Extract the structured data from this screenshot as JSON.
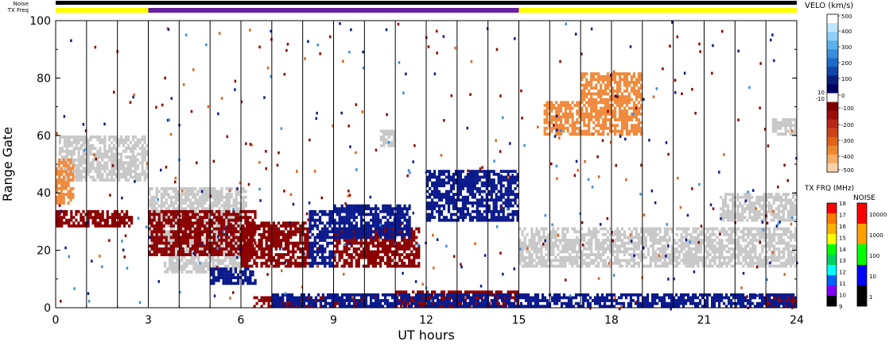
{
  "top_bars": {
    "noise_label": "Noise",
    "txfreq_label": "TX Freq",
    "txfreq_segments": [
      {
        "from": 0,
        "to": 3,
        "color": "#ffff00"
      },
      {
        "from": 3,
        "to": 15,
        "color": "#6a1fa0"
      },
      {
        "from": 15,
        "to": 24,
        "color": "#ffff00"
      }
    ]
  },
  "chart_data": {
    "type": "heatmap",
    "xlabel": "UT hours",
    "ylabel": "Range Gate",
    "xlim": [
      0,
      24
    ],
    "ylim": [
      0,
      100
    ],
    "x_ticks": [
      "0",
      "3",
      "6",
      "9",
      "12",
      "15",
      "18",
      "21",
      "24"
    ],
    "x_tick_values": [
      0,
      3,
      6,
      9,
      12,
      15,
      18,
      21,
      24
    ],
    "y_ticks": [
      "0",
      "20",
      "40",
      "60",
      "80",
      "100"
    ],
    "y_tick_values": [
      0,
      20,
      40,
      60,
      80,
      100
    ],
    "scan_boundaries_ut": [
      1.0,
      2.0,
      3.0,
      4.0,
      5.0,
      6.0,
      7.0,
      8.0,
      9.0,
      10.0,
      11.0,
      12.0,
      13.0,
      14.0,
      15.0,
      16.0,
      17.0,
      18.0,
      19.0,
      20.0,
      21.0,
      22.0,
      23.0
    ],
    "regions": [
      {
        "label": "ground scatter",
        "color": "#c8c8c8",
        "x": [
          0.1,
          3.0
        ],
        "y": [
          44,
          60
        ]
      },
      {
        "label": "ground scatter",
        "color": "#c8c8c8",
        "x": [
          3.0,
          6.2
        ],
        "y": [
          22,
          42
        ]
      },
      {
        "label": "ground scatter",
        "color": "#c8c8c8",
        "x": [
          3.5,
          6.0
        ],
        "y": [
          12,
          24
        ]
      },
      {
        "label": "ground scatter",
        "color": "#c8c8c8",
        "x": [
          15.0,
          24.0
        ],
        "y": [
          14,
          28
        ]
      },
      {
        "label": "ground scatter",
        "color": "#c8c8c8",
        "x": [
          21.5,
          24.0
        ],
        "y": [
          30,
          40
        ]
      },
      {
        "label": "ground scatter",
        "color": "#c8c8c8",
        "x": [
          23.2,
          24.0
        ],
        "y": [
          60,
          66
        ]
      },
      {
        "label": "ground scatter",
        "color": "#c8c8c8",
        "x": [
          10.5,
          11.0
        ],
        "y": [
          56,
          62
        ]
      },
      {
        "label": "negative velocity",
        "color": "#8b0000",
        "x": [
          0.0,
          2.5
        ],
        "y": [
          28,
          34
        ]
      },
      {
        "label": "negative velocity",
        "color": "#8b0000",
        "x": [
          3.0,
          6.5
        ],
        "y": [
          18,
          34
        ]
      },
      {
        "label": "negative velocity",
        "color": "#8b0000",
        "x": [
          6.0,
          8.2
        ],
        "y": [
          14,
          30
        ]
      },
      {
        "label": "negative velocity",
        "color": "#8b0000",
        "x": [
          9.0,
          11.8
        ],
        "y": [
          14,
          28
        ]
      },
      {
        "label": "negative velocity",
        "color": "#8b0000",
        "x": [
          6.4,
          10.0
        ],
        "y": [
          0,
          4
        ]
      },
      {
        "label": "negative velocity",
        "color": "#8b0000",
        "x": [
          11.0,
          15.0
        ],
        "y": [
          0,
          6
        ]
      },
      {
        "label": "negative velocity",
        "color": "#8b0000",
        "x": [
          23.0,
          24.0
        ],
        "y": [
          0,
          4
        ]
      },
      {
        "label": "positive velocity",
        "color": "#0a1a8c",
        "x": [
          8.2,
          9.0
        ],
        "y": [
          14,
          34
        ]
      },
      {
        "label": "positive velocity",
        "color": "#0a1a8c",
        "x": [
          9.0,
          11.5
        ],
        "y": [
          24,
          36
        ]
      },
      {
        "label": "positive velocity",
        "color": "#0a1a8c",
        "x": [
          5.0,
          6.5
        ],
        "y": [
          8,
          14
        ]
      },
      {
        "label": "positive velocity",
        "color": "#0a1a8c",
        "x": [
          7.0,
          24.0
        ],
        "y": [
          0,
          5
        ]
      },
      {
        "label": "positive velocity",
        "color": "#0a1a8c",
        "x": [
          12.0,
          15.0
        ],
        "y": [
          30,
          48
        ]
      },
      {
        "label": "strong negative velocity",
        "color": "#f08a3c",
        "x": [
          17.0,
          19.0
        ],
        "y": [
          60,
          82
        ]
      },
      {
        "label": "strong negative velocity",
        "color": "#f08a3c",
        "x": [
          15.8,
          17.0
        ],
        "y": [
          60,
          72
        ]
      },
      {
        "label": "strong negative velocity",
        "color": "#f08a3c",
        "x": [
          0.0,
          0.6
        ],
        "y": [
          36,
          52
        ]
      }
    ],
    "velocity_colorbar": {
      "title": "VELO (km/s)",
      "ticks": [
        "500",
        "400",
        "300",
        "200",
        "100",
        "10",
        "0",
        "-10",
        "-100",
        "-200",
        "-300",
        "-400",
        "-500"
      ],
      "colors": [
        "#ffffff",
        "#bfe6ff",
        "#8fd0f8",
        "#5cb2ec",
        "#3a8fdc",
        "#1f6cc8",
        "#1245a8",
        "#0a1f7a",
        "#000060",
        "#ffffff",
        "#7a0000",
        "#9a0f0a",
        "#b8261a",
        "#cc4416",
        "#e0621a",
        "#ee8830",
        "#f5ac66",
        "#fbd2a8"
      ]
    },
    "txfreq_colorbar": {
      "title": "TX FRQ (MHz)",
      "ticks": [
        "18",
        "17",
        "16",
        "15",
        "14",
        "13",
        "12",
        "11",
        "10",
        "9"
      ],
      "colors": [
        "#ff0000",
        "#ff7a00",
        "#ffb000",
        "#ffff00",
        "#00ff00",
        "#00d060",
        "#00ffff",
        "#0060ff",
        "#8000ff",
        "#000000"
      ]
    },
    "noise_colorbar": {
      "title": "NOISE",
      "ticks": [
        "10000",
        "1000",
        "100",
        "10",
        "1"
      ],
      "colors": [
        "#ff0000",
        "#ffa000",
        "#00ff00",
        "#0000ff",
        "#000000"
      ]
    }
  }
}
